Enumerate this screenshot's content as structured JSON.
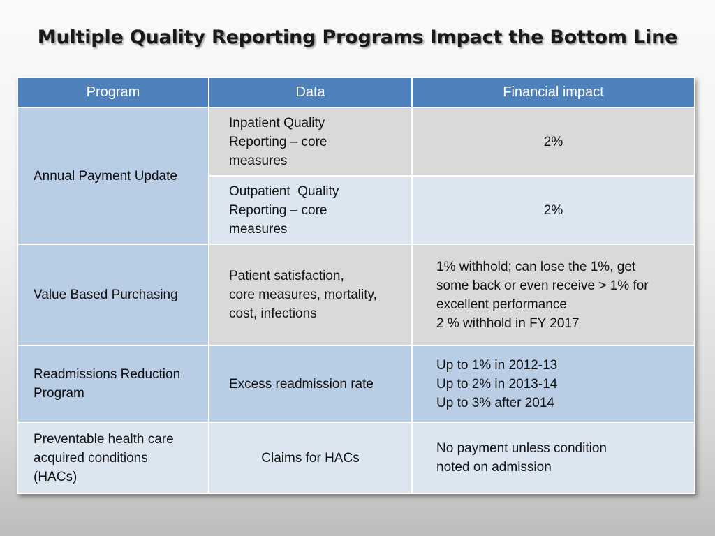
{
  "title": "Multiple Quality Reporting Programs Impact the Bottom Line",
  "table": {
    "headers": [
      "Program",
      "Data",
      "Financial impact"
    ],
    "rows": [
      {
        "program": "Annual Payment Update",
        "data": "Inpatient Quality Reporting – core measures",
        "data_lines": [
          "Inpatient Quality",
          "Reporting – core",
          "measures"
        ],
        "financial": "2%"
      },
      {
        "data": "Outpatient  Quality Reporting – core measures",
        "data_lines": [
          "Outpatient  Quality",
          "Reporting – core",
          "measures"
        ],
        "financial": "2%"
      },
      {
        "program": "Value Based Purchasing",
        "data": "Patient satisfaction, core measures, mortality, cost, infections",
        "data_lines": [
          "Patient satisfaction,",
          "core measures, mortality,",
          "cost, infections"
        ],
        "financial_lines": [
          "1% withhold; can lose the 1%, get",
          "some back or even receive > 1% for",
          "excellent performance",
          "2 % withhold in FY 2017"
        ]
      },
      {
        "program_lines": [
          "Readmissions Reduction",
          "Program"
        ],
        "data": "Excess readmission rate",
        "financial_lines": [
          "Up to 1% in 2012-13",
          "Up to 2% in 2013-14",
          "Up to 3% after 2014"
        ]
      },
      {
        "program_lines": [
          "Preventable health care",
          "acquired conditions",
          "(HACs)"
        ],
        "data": "Claims for HACs",
        "financial_lines": [
          "No payment unless condition",
          "noted on admission"
        ]
      }
    ]
  }
}
